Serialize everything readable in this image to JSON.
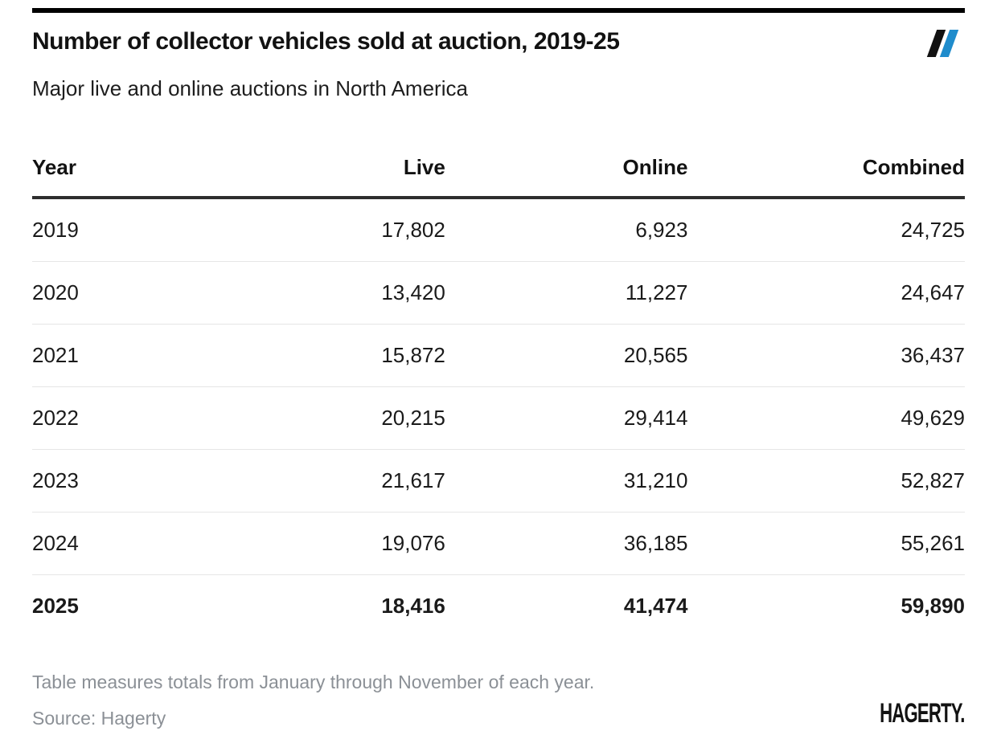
{
  "chart_data": {
    "type": "table",
    "title": "Number of collector vehicles sold at auction, 2019-25",
    "subtitle": "Major live and online auctions in North America",
    "columns": [
      "Year",
      "Live",
      "Online",
      "Combined"
    ],
    "rows": [
      {
        "year": "2019",
        "live": "17,802",
        "online": "6,923",
        "combined": "24,725"
      },
      {
        "year": "2020",
        "live": "13,420",
        "online": "11,227",
        "combined": "24,647"
      },
      {
        "year": "2021",
        "live": "15,872",
        "online": "20,565",
        "combined": "36,437"
      },
      {
        "year": "2022",
        "live": "20,215",
        "online": "29,414",
        "combined": "49,629"
      },
      {
        "year": "2023",
        "live": "21,617",
        "online": "31,210",
        "combined": "52,827"
      },
      {
        "year": "2024",
        "live": "19,076",
        "online": "36,185",
        "combined": "55,261"
      },
      {
        "year": "2025",
        "live": "18,416",
        "online": "41,474",
        "combined": "59,890",
        "emphasis": true
      }
    ],
    "note": "Table measures totals from January through November of each year.",
    "source": "Source: Hagerty",
    "layout_hints": {
      "emphasized_row": "2025",
      "number_alignment": "right",
      "grid": "horizontal-rules-only"
    }
  },
  "brand": {
    "wordmark": "HAGERTY.",
    "slash_icon_colors": {
      "left": "#121212",
      "right": "#1f8ccc"
    },
    "accent_blue": "#1f8ccc"
  },
  "colors": {
    "top_bar": "#000000",
    "header_rule": "#2e2e2e",
    "row_separator": "#e6e6e6",
    "muted_text": "#8b9096",
    "primary_text": "#121212"
  }
}
